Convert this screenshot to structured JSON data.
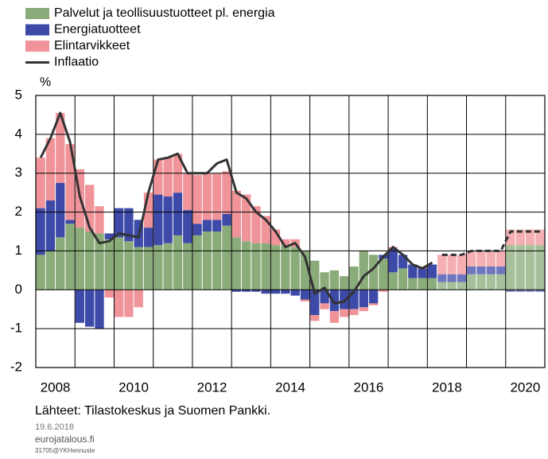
{
  "chart_data": {
    "type": "stacked_bar_line",
    "y_label": "%",
    "x": [
      2008,
      2008.25,
      2008.5,
      2008.75,
      2009,
      2009.25,
      2009.5,
      2009.75,
      2010,
      2010.25,
      2010.5,
      2010.75,
      2011,
      2011.25,
      2011.5,
      2011.75,
      2012,
      2012.25,
      2012.5,
      2012.75,
      2013,
      2013.25,
      2013.5,
      2013.75,
      2014,
      2014.25,
      2014.5,
      2014.75,
      2015,
      2015.25,
      2015.5,
      2015.75,
      2016,
      2016.25,
      2016.5,
      2016.75,
      2017,
      2017.25,
      2017.5,
      2017.75,
      2018,
      2018.25,
      2018.5,
      2018.75,
      2019,
      2019.25,
      2019.5,
      2019.75,
      2020,
      2020.25,
      2020.5,
      2020.75
    ],
    "series": [
      {
        "name": "Palvelut ja teollisuustuotteet pl. energia",
        "color": "#8aab7a",
        "kind": "bar",
        "values": [
          0.9,
          1.0,
          1.35,
          1.7,
          1.6,
          1.5,
          1.45,
          1.3,
          1.35,
          1.25,
          1.1,
          1.1,
          1.15,
          1.2,
          1.4,
          1.2,
          1.4,
          1.5,
          1.5,
          1.65,
          1.35,
          1.25,
          1.2,
          1.2,
          1.15,
          1.15,
          1.1,
          1.0,
          0.75,
          0.45,
          0.5,
          0.35,
          0.6,
          1.0,
          0.9,
          0.8,
          0.45,
          0.55,
          0.3,
          0.3,
          0.3,
          0.2,
          0.2,
          0.2,
          0.4,
          0.4,
          0.4,
          0.4,
          1.15,
          1.15,
          1.15,
          1.15
        ]
      },
      {
        "name": "Energiatuotteet",
        "color": "#3d4aa8",
        "kind": "bar",
        "values": [
          1.2,
          1.3,
          1.4,
          0.1,
          -0.85,
          -0.95,
          -1.0,
          0.15,
          0.75,
          0.85,
          0.7,
          0.5,
          1.3,
          1.2,
          1.1,
          0.85,
          0.3,
          0.3,
          0.3,
          0.3,
          -0.05,
          -0.05,
          -0.05,
          -0.1,
          -0.1,
          -0.1,
          -0.15,
          -0.25,
          -0.65,
          -0.35,
          -0.55,
          -0.5,
          -0.5,
          -0.45,
          -0.35,
          0.1,
          0.6,
          0.35,
          0.35,
          0.25,
          0.35,
          0.2,
          0.2,
          0.2,
          0.2,
          0.2,
          0.2,
          0.2,
          -0.05,
          -0.05,
          -0.05,
          -0.05
        ]
      },
      {
        "name": "Elintarvikkeet",
        "color": "#f0949a",
        "kind": "bar",
        "values": [
          1.3,
          1.6,
          1.8,
          1.95,
          1.5,
          1.2,
          0.7,
          -0.2,
          -0.7,
          -0.7,
          -0.45,
          0.9,
          0.9,
          1.0,
          1.0,
          0.95,
          1.25,
          1.2,
          1.2,
          1.1,
          1.2,
          1.2,
          0.95,
          0.7,
          0.4,
          0.15,
          0.2,
          -0.05,
          -0.15,
          -0.15,
          -0.3,
          -0.2,
          -0.15,
          -0.1,
          -0.05,
          -0.05,
          0.05,
          0,
          0,
          0.05,
          0,
          0.5,
          0.5,
          0.5,
          0.4,
          0.4,
          0.4,
          0.4,
          0.4,
          0.4,
          0.4,
          0.4
        ]
      },
      {
        "name": "Inflaatio",
        "color": "#333333",
        "kind": "line",
        "values": [
          3.4,
          3.9,
          4.55,
          3.8,
          2.4,
          1.6,
          1.2,
          1.25,
          1.45,
          1.4,
          1.35,
          2.5,
          3.35,
          3.4,
          3.5,
          3.0,
          3.0,
          3.0,
          3.25,
          3.35,
          2.5,
          2.35,
          2.0,
          1.8,
          1.5,
          1.1,
          1.2,
          0.85,
          -0.1,
          0.05,
          -0.35,
          -0.3,
          -0.05,
          0.35,
          0.55,
          0.85,
          1.1,
          0.9,
          0.65,
          0.55,
          0.7,
          0.9,
          0.9,
          0.9,
          1.0,
          1.0,
          1.0,
          1.0,
          1.5,
          1.5,
          1.5,
          1.5
        ]
      }
    ],
    "forecast_from_index": 41,
    "bar_width": 0.25,
    "xlim": [
      2008,
      2021
    ],
    "xticks": [
      2008,
      2010,
      2012,
      2014,
      2016,
      2018,
      2020
    ],
    "ylim": [
      -2,
      5
    ],
    "yticks": [
      -2,
      -1,
      0,
      1,
      2,
      3,
      4,
      5
    ],
    "grid": true,
    "legend": "top-left",
    "source": "Lähteet: Tilastokeskus ja Suomen Pankki.",
    "date": "19.6.2018",
    "site": "eurojatalous.fi",
    "code": "31705@YKHennuste"
  }
}
